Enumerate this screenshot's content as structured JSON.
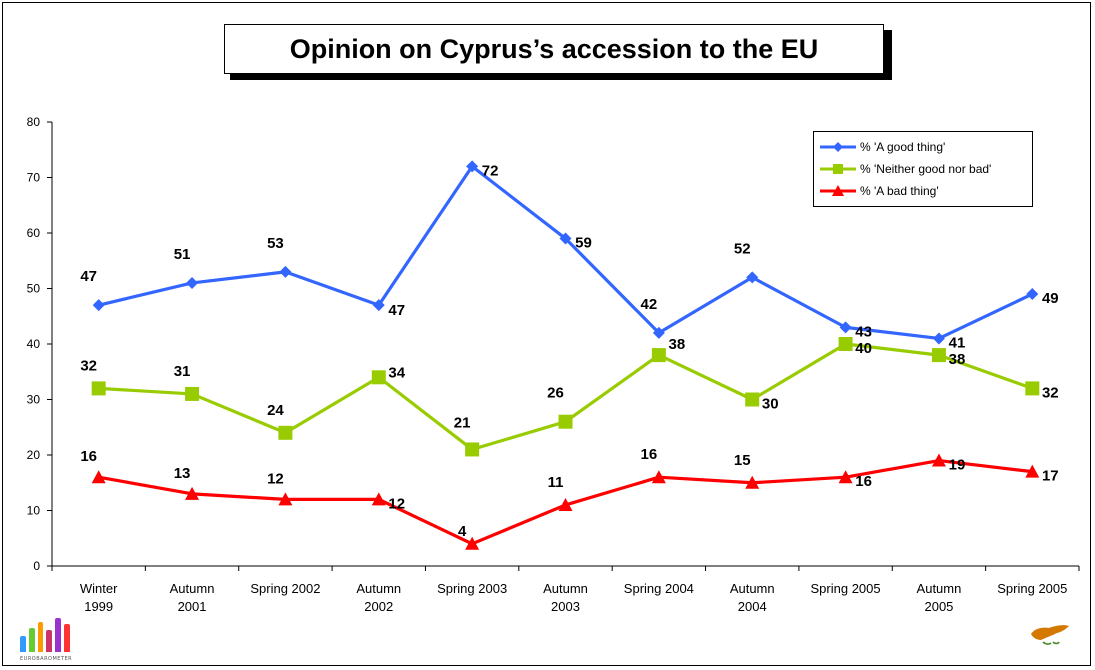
{
  "chart_data": {
    "type": "line",
    "title": "Opinion on Cyprus’s accession to the EU",
    "categories": [
      [
        "Winter",
        "1999"
      ],
      [
        "Autumn",
        "2001"
      ],
      [
        "Spring 2002"
      ],
      [
        "Autumn",
        "2002"
      ],
      [
        "Spring 2003"
      ],
      [
        "Autumn",
        "2003"
      ],
      [
        "Spring 2004"
      ],
      [
        "Autumn",
        "2004"
      ],
      [
        "Spring 2005"
      ],
      [
        "Autumn",
        "2005"
      ],
      [
        "Spring 2005"
      ]
    ],
    "ylim": [
      0,
      80
    ],
    "yticks": [
      0,
      10,
      20,
      30,
      40,
      50,
      60,
      70,
      80
    ],
    "grid": false,
    "legend_position": "top-right",
    "series": [
      {
        "name": "% 'A good thing'",
        "color": "#3366FF",
        "marker": "diamond",
        "values": [
          47,
          51,
          53,
          47,
          72,
          59,
          42,
          52,
          43,
          41,
          49
        ]
      },
      {
        "name": "% 'Neither good nor bad'",
        "color": "#99CC00",
        "marker": "square",
        "values": [
          32,
          31,
          24,
          34,
          21,
          26,
          38,
          30,
          40,
          38,
          32
        ]
      },
      {
        "name": "% 'A bad thing'",
        "color": "#FF0000",
        "marker": "triangle",
        "values": [
          16,
          13,
          12,
          12,
          4,
          11,
          16,
          15,
          16,
          19,
          17
        ]
      }
    ]
  },
  "branding": {
    "logo_text": "EUROBAROMETER",
    "logo_colors": [
      "#3399FF",
      "#66CC33",
      "#FF9900",
      "#CC3366",
      "#9933CC",
      "#FF3333"
    ],
    "flag_icon": "cyprus-flag-icon",
    "flag_color": "#D57800"
  }
}
